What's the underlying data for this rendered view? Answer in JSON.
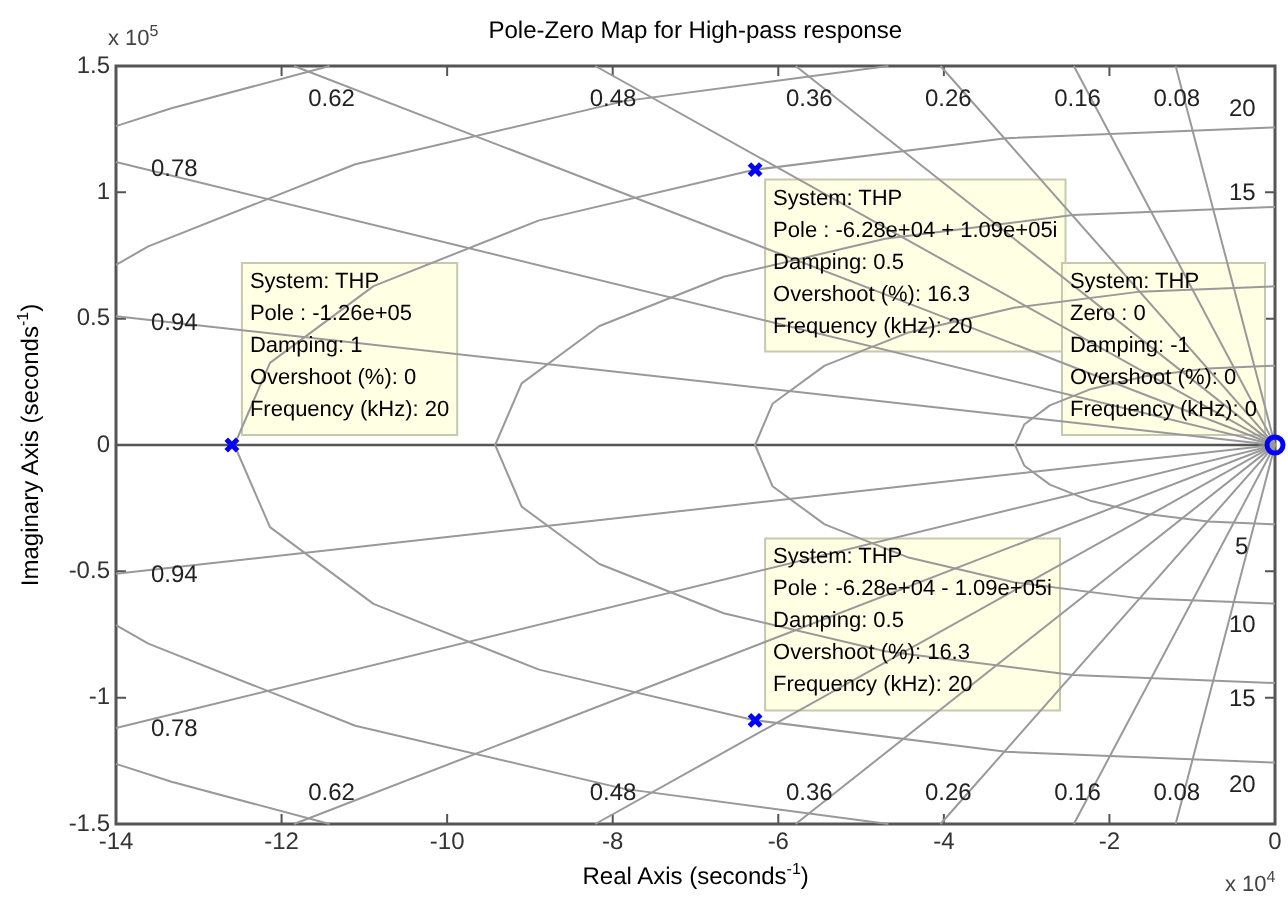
{
  "chart_data": {
    "type": "scatter",
    "title": "Pole-Zero Map for High-pass response",
    "xlabel": "Real Axis (seconds$^{-1}$)",
    "ylabel": "Imaginary Axis (seconds$^{-1}$)",
    "xlim": [
      -14,
      0
    ],
    "xticks": [
      -14,
      -12,
      -10,
      -8,
      -6,
      -4,
      -2,
      0
    ],
    "ylim": [
      -1.5,
      1.5
    ],
    "yticks": [
      -1.5,
      -1,
      -0.5,
      0,
      0.5,
      1,
      1.5
    ],
    "ref_lines": [
      {
        "axis": "y",
        "value": 0,
        "color": "#555555"
      }
    ],
    "series": [
      {
        "type": "line",
        "color": "#999999",
        "x": [
          0,
          -1.2
        ],
        "values": [
          0,
          1.5
        ]
      },
      {
        "type": "line",
        "color": "#999999",
        "x": [
          0,
          -2.43
        ],
        "values": [
          0,
          1.5
        ]
      },
      {
        "type": "line",
        "color": "#999999",
        "x": [
          0,
          -4.04
        ],
        "values": [
          0,
          1.5
        ]
      },
      {
        "type": "line",
        "color": "#999999",
        "x": [
          0,
          -5.79
        ],
        "values": [
          0,
          1.5
        ]
      },
      {
        "type": "line",
        "color": "#999999",
        "x": [
          0,
          -8.21
        ],
        "values": [
          0,
          1.5
        ]
      },
      {
        "type": "line",
        "color": "#999999",
        "x": [
          0,
          -11.85
        ],
        "values": [
          0,
          1.5
        ]
      },
      {
        "type": "line",
        "color": "#999999",
        "x": [
          0,
          -14
        ],
        "values": [
          0,
          1.12
        ]
      },
      {
        "type": "line",
        "color": "#999999",
        "x": [
          0,
          -14
        ],
        "values": [
          0,
          0.51
        ]
      },
      {
        "type": "line",
        "color": "#999999",
        "x": [
          0,
          -1.2
        ],
        "values": [
          0,
          -1.5
        ]
      },
      {
        "type": "line",
        "color": "#999999",
        "x": [
          0,
          -2.43
        ],
        "values": [
          0,
          -1.5
        ]
      },
      {
        "type": "line",
        "color": "#999999",
        "x": [
          0,
          -4.04
        ],
        "values": [
          0,
          -1.5
        ]
      },
      {
        "type": "line",
        "color": "#999999",
        "x": [
          0,
          -5.79
        ],
        "values": [
          0,
          -1.5
        ]
      },
      {
        "type": "line",
        "color": "#999999",
        "x": [
          0,
          -8.21
        ],
        "values": [
          0,
          -1.5
        ]
      },
      {
        "type": "line",
        "color": "#999999",
        "x": [
          0,
          -11.85
        ],
        "values": [
          0,
          -1.5
        ]
      },
      {
        "type": "line",
        "color": "#999999",
        "x": [
          0,
          -14
        ],
        "values": [
          0,
          -1.12
        ]
      },
      {
        "type": "line",
        "color": "#999999",
        "x": [
          0,
          -14
        ],
        "values": [
          0,
          -0.51
        ]
      },
      {
        "type": "line",
        "color": "#999999",
        "x": [
          0,
          -0.81,
          -1.57,
          -2.22,
          -2.72,
          -3.03,
          -3.14,
          -3.03,
          -2.72,
          -2.22,
          -1.57,
          -0.81,
          0
        ],
        "values": [
          0.314,
          0.303,
          0.272,
          0.222,
          0.157,
          0.081,
          0,
          -0.081,
          -0.157,
          -0.222,
          -0.272,
          -0.303,
          -0.314
        ]
      },
      {
        "type": "line",
        "color": "#999999",
        "x": [
          0,
          -1.63,
          -3.14,
          -4.44,
          -5.44,
          -6.07,
          -6.28,
          -6.07,
          -5.44,
          -4.44,
          -3.14,
          -1.63,
          0
        ],
        "values": [
          0.628,
          0.607,
          0.544,
          0.444,
          0.314,
          0.163,
          0,
          -0.163,
          -0.314,
          -0.444,
          -0.544,
          -0.607,
          -0.628
        ]
      },
      {
        "type": "line",
        "color": "#999999",
        "x": [
          0,
          -2.44,
          -4.71,
          -6.66,
          -8.16,
          -9.1,
          -9.42,
          -9.1,
          -8.16,
          -6.66,
          -4.71,
          -2.44,
          0
        ],
        "values": [
          0.942,
          0.91,
          0.816,
          0.666,
          0.471,
          0.244,
          0,
          -0.244,
          -0.471,
          -0.666,
          -0.816,
          -0.91,
          -0.942
        ]
      },
      {
        "type": "line",
        "color": "#999999",
        "x": [
          0,
          -3.25,
          -6.29,
          -8.89,
          -10.89,
          -12.14,
          -12.57,
          -12.14,
          -10.89,
          -8.89,
          -6.29,
          -3.25,
          0
        ],
        "values": [
          1.257,
          1.214,
          1.089,
          0.889,
          0.629,
          0.325,
          0,
          -0.325,
          -0.629,
          -0.889,
          -1.089,
          -1.214,
          -1.257
        ]
      },
      {
        "type": "line",
        "color": "#999999",
        "x": [
          -4.67,
          -7.86,
          -11.11,
          -13.61,
          -14
        ],
        "values": [
          1.5,
          1.361,
          1.111,
          0.786,
          0.713
        ]
      },
      {
        "type": "line",
        "color": "#999999",
        "x": [
          -4.67,
          -7.86,
          -11.11,
          -13.61,
          -14
        ],
        "values": [
          -1.5,
          -1.361,
          -1.111,
          -0.786,
          -0.713
        ]
      },
      {
        "type": "line",
        "color": "#999999",
        "x": [
          -11.42,
          -13.33,
          -14
        ],
        "values": [
          1.5,
          1.333,
          1.262
        ]
      },
      {
        "type": "line",
        "color": "#999999",
        "x": [
          -11.42,
          -13.33,
          -14
        ],
        "values": [
          -1.5,
          -1.333,
          -1.262
        ]
      },
      {
        "type": "scatter",
        "marker": "cross",
        "color": "#0000ff",
        "x": [
          -12.6,
          -6.28,
          -6.28
        ],
        "values": [
          0,
          1.09,
          -1.09
        ]
      },
      {
        "type": "scatter",
        "marker": "circle",
        "color": "#0000ff",
        "x": [
          0
        ],
        "values": [
          0
        ]
      }
    ],
    "annotations": [
      "x 10$^{5}$",
      "x 10$^{4}$",
      "0.62",
      "0.48",
      "0.36",
      "0.26",
      "0.16",
      "0.08",
      "0.62",
      "0.48",
      "0.36",
      "0.26",
      "0.16",
      "0.08",
      "0.78",
      "0.94",
      "0.94",
      "0.78",
      "20",
      "15",
      "5",
      "10",
      "15",
      "20",
      {
        "text": "System: THP\nPole : -1.26e+05\nDamping: 1\nOvershoot (%): 0\nFrequency (kHz): 20",
        "x": -12.6,
        "y": 0
      },
      {
        "text": "System: THP\nPole : -6.28e+04 + 1.09e+05i\nDamping: 0.5\nOvershoot (%): 16.3\nFrequency (kHz): 20",
        "x": -6.28,
        "y": 1.09
      },
      {
        "text": "System: THP\nPole : -6.28e+04 - 1.09e+05i\nDamping: 0.5\nOvershoot (%): 16.3\nFrequency (kHz): 20",
        "x": -6.28,
        "y": -1.09
      },
      {
        "text": "System: THP\nZero : 0\nDamping: -1\nOvershoot (%): 0\nFrequency (kHz): 0",
        "x": 0,
        "y": 0
      }
    ]
  }
}
